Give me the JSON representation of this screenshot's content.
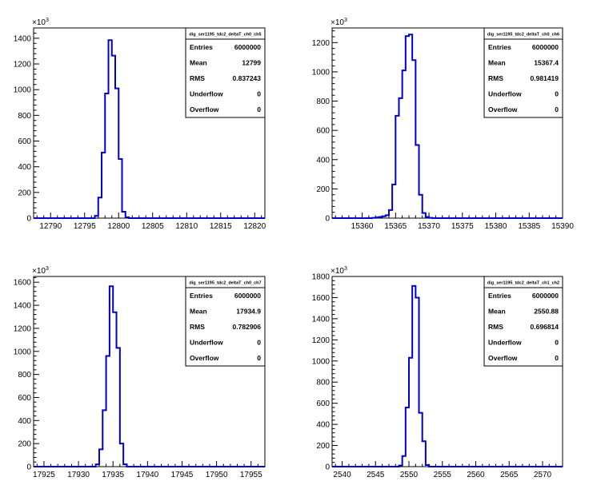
{
  "colors": {
    "line": "#0000cc",
    "frame": "#000000",
    "background": "#ffffff"
  },
  "chart_data": [
    {
      "type": "histogram",
      "title": "",
      "stats_title": "dig_ser1195_tdc2_deltaT_ch0_ch5",
      "stats": [
        {
          "label": "Entries",
          "value": "6000000"
        },
        {
          "label": "Mean",
          "value": "12799"
        },
        {
          "label": "RMS",
          "value": "0.837243"
        },
        {
          "label": "Underflow",
          "value": "0"
        },
        {
          "label": "Overflow",
          "value": "0"
        }
      ],
      "y_multiplier": "10^3",
      "xlim": [
        12787.5,
        12821.5
      ],
      "ylim": [
        0,
        1480
      ],
      "xticks": [
        12790,
        12795,
        12800,
        12805,
        12810,
        12815,
        12820
      ],
      "yticks": [
        0,
        200,
        400,
        600,
        800,
        1000,
        1200,
        1400
      ],
      "bin_width": 0.5,
      "bins_x": [
        12796.5,
        12797.0,
        12797.5,
        12798.0,
        12798.5,
        12799.0,
        12799.5,
        12800.0,
        12800.5,
        12801.0
      ],
      "bins_y": [
        18,
        160,
        510,
        970,
        1385,
        1265,
        1010,
        460,
        50,
        7
      ]
    },
    {
      "type": "histogram",
      "title": "",
      "stats_title": "dig_ser1195_tdc2_deltaT_ch0_ch6",
      "stats": [
        {
          "label": "Entries",
          "value": "6000000"
        },
        {
          "label": "Mean",
          "value": "15367.4"
        },
        {
          "label": "RMS",
          "value": "0.981419"
        },
        {
          "label": "Underflow",
          "value": "0"
        },
        {
          "label": "Overflow",
          "value": "0"
        }
      ],
      "y_multiplier": "10^3",
      "xlim": [
        15355.5,
        15390
      ],
      "ylim": [
        0,
        1300
      ],
      "xticks": [
        15360,
        15365,
        15370,
        15375,
        15380,
        15385,
        15390
      ],
      "yticks": [
        0,
        200,
        400,
        600,
        800,
        1000,
        1200
      ],
      "bin_width": 0.5,
      "bins_x": [
        15361.5,
        15362.0,
        15362.5,
        15363.0,
        15363.5,
        15364.0,
        15364.5,
        15365.0,
        15365.5,
        15366.0,
        15366.5,
        15367.0,
        15367.5,
        15368.0,
        15368.5,
        15369.0,
        15369.5,
        15370.0
      ],
      "bins_y": [
        2,
        5,
        8,
        12,
        20,
        55,
        230,
        700,
        820,
        1010,
        1245,
        1255,
        1080,
        500,
        160,
        35,
        8,
        2
      ]
    },
    {
      "type": "histogram",
      "title": "",
      "stats_title": "dig_ser1195_tdc2_deltaT_ch0_ch7",
      "stats": [
        {
          "label": "Entries",
          "value": "6000000"
        },
        {
          "label": "Mean",
          "value": "17934.9"
        },
        {
          "label": "RMS",
          "value": "0.782906"
        },
        {
          "label": "Underflow",
          "value": "0"
        },
        {
          "label": "Overflow",
          "value": "0"
        }
      ],
      "y_multiplier": "10^3",
      "xlim": [
        17923.5,
        17957
      ],
      "ylim": [
        0,
        1650
      ],
      "xticks": [
        17925,
        17930,
        17935,
        17940,
        17945,
        17950,
        17955
      ],
      "yticks": [
        0,
        200,
        400,
        600,
        800,
        1000,
        1200,
        1400,
        1600
      ],
      "bin_width": 0.5,
      "bins_x": [
        17932.5,
        17933.0,
        17933.5,
        17934.0,
        17934.5,
        17935.0,
        17935.5,
        17936.0,
        17936.5
      ],
      "bins_y": [
        20,
        150,
        490,
        960,
        1565,
        1340,
        1030,
        200,
        20
      ]
    },
    {
      "type": "histogram",
      "title": "",
      "stats_title": "dig_ser1195_tdc2_deltaT_ch1_ch2",
      "stats": [
        {
          "label": "Entries",
          "value": "6000000"
        },
        {
          "label": "Mean",
          "value": "2550.88"
        },
        {
          "label": "RMS",
          "value": "0.696814"
        },
        {
          "label": "Underflow",
          "value": "0"
        },
        {
          "label": "Overflow",
          "value": "0"
        }
      ],
      "y_multiplier": "10^3",
      "xlim": [
        2538.5,
        2573
      ],
      "ylim": [
        0,
        1800
      ],
      "xticks": [
        2540,
        2545,
        2550,
        2555,
        2560,
        2565,
        2570
      ],
      "yticks": [
        0,
        200,
        400,
        600,
        800,
        1000,
        1200,
        1400,
        1600,
        1800
      ],
      "bin_width": 0.5,
      "bins_x": [
        2548.5,
        2549.0,
        2549.5,
        2550.0,
        2550.5,
        2551.0,
        2551.5,
        2552.0,
        2552.5
      ],
      "bins_y": [
        10,
        100,
        560,
        1030,
        1710,
        1600,
        510,
        240,
        15
      ]
    }
  ]
}
